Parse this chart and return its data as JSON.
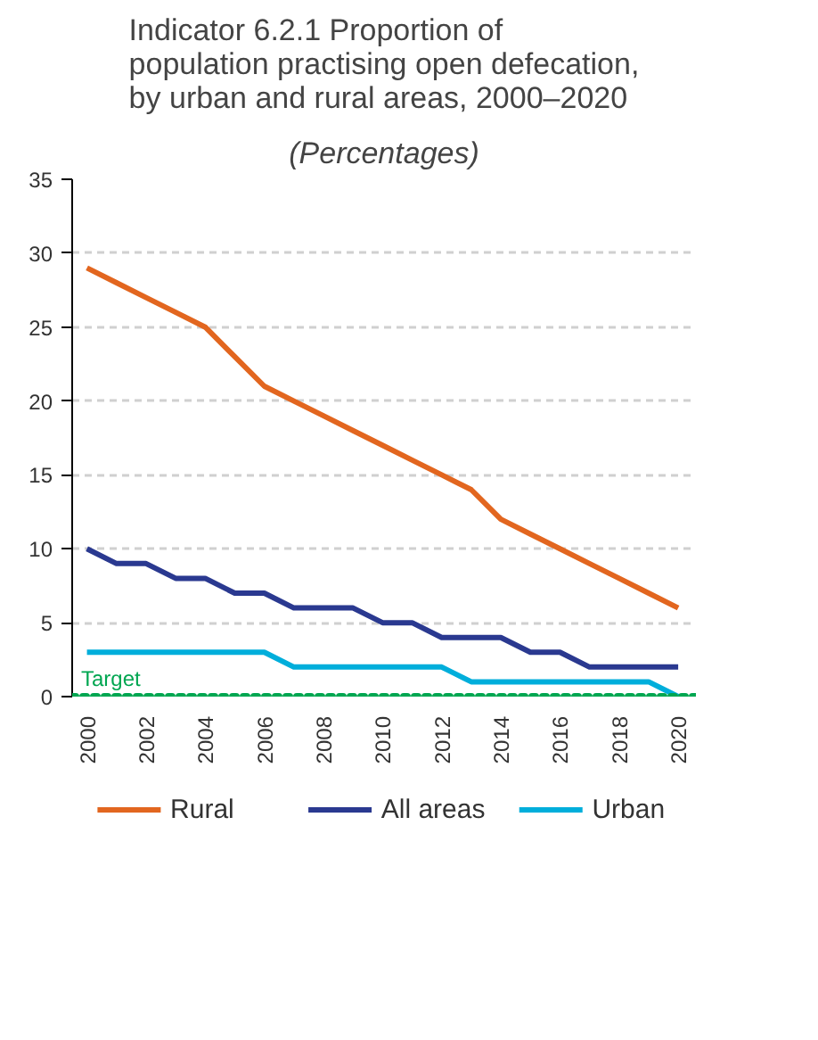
{
  "chart_data": {
    "type": "line",
    "title": "Indicator 6.2.1 Proportion of population practising open defecation, by urban and rural areas, 2000–2020",
    "subtitle": "(Percentages)",
    "x": [
      2000,
      2001,
      2002,
      2003,
      2004,
      2005,
      2006,
      2007,
      2008,
      2009,
      2010,
      2011,
      2012,
      2013,
      2014,
      2015,
      2016,
      2017,
      2018,
      2019,
      2020
    ],
    "series": [
      {
        "name": "Rural",
        "color": "#e2661f",
        "values": [
          29,
          28,
          27,
          26,
          25,
          23,
          21,
          20,
          19,
          18,
          17,
          16,
          15,
          14,
          12,
          11,
          10,
          9,
          8,
          7,
          6
        ]
      },
      {
        "name": "All areas",
        "color": "#2a3990",
        "values": [
          10,
          9,
          9,
          8,
          8,
          7,
          7,
          6,
          6,
          6,
          5,
          5,
          4,
          4,
          4,
          3,
          3,
          2,
          2,
          2,
          2
        ]
      },
      {
        "name": "Urban",
        "color": "#00aedb",
        "values": [
          3,
          3,
          3,
          3,
          3,
          3,
          3,
          2,
          2,
          2,
          2,
          2,
          2,
          1,
          1,
          1,
          1,
          1,
          1,
          1,
          0
        ]
      }
    ],
    "xlim": [
      1999.5,
      2020.6
    ],
    "xticks": [
      2000,
      2002,
      2004,
      2006,
      2008,
      2010,
      2012,
      2014,
      2016,
      2018,
      2020
    ],
    "ylim": [
      0,
      35
    ],
    "yticks": [
      0,
      5,
      10,
      15,
      20,
      25,
      30,
      35
    ],
    "ref_lines": [
      {
        "axis": "y",
        "value": 0,
        "label": "Target",
        "color": "#00a651",
        "line_style": "dotted"
      }
    ],
    "grid": "y",
    "legend": "bottom",
    "line_style": "solid"
  }
}
